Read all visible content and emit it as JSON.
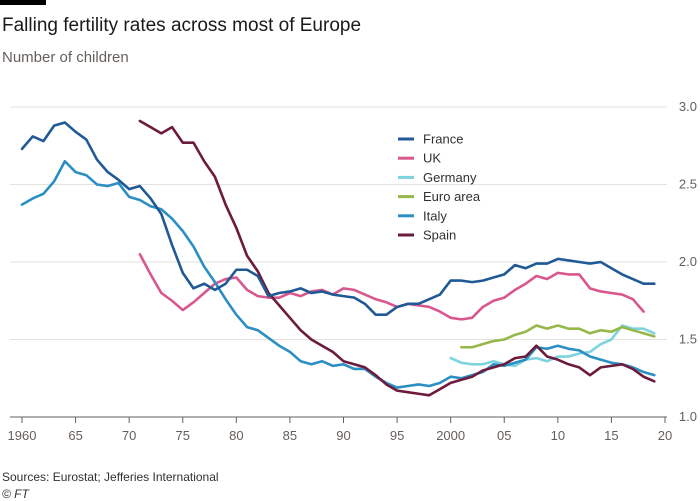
{
  "title": "Falling fertility rates across most of Europe",
  "subtitle": "Number of children",
  "source": "Sources: Eurostat; Jefferies International",
  "credit": "© FT",
  "chart_data": {
    "type": "line",
    "title": "Falling fertility rates across most of Europe",
    "subtitle": "Number of children",
    "xlabel": "",
    "ylabel": "",
    "xlim": [
      1960,
      2020
    ],
    "ylim": [
      1.0,
      3.0
    ],
    "x_ticks": [
      {
        "value": 1960,
        "label": "1960"
      },
      {
        "value": 1965,
        "label": "65"
      },
      {
        "value": 1970,
        "label": "70"
      },
      {
        "value": 1975,
        "label": "75"
      },
      {
        "value": 1980,
        "label": "80"
      },
      {
        "value": 1985,
        "label": "85"
      },
      {
        "value": 1990,
        "label": "90"
      },
      {
        "value": 1995,
        "label": "95"
      },
      {
        "value": 2000,
        "label": "2000"
      },
      {
        "value": 2005,
        "label": "05"
      },
      {
        "value": 2010,
        "label": "10"
      },
      {
        "value": 2015,
        "label": "15"
      },
      {
        "value": 2020,
        "label": "20"
      }
    ],
    "y_ticks": [
      {
        "value": 1.0,
        "label": "1.0"
      },
      {
        "value": 1.5,
        "label": "1.5"
      },
      {
        "value": 2.0,
        "label": "2.0"
      },
      {
        "value": 2.5,
        "label": "2.5"
      },
      {
        "value": 3.0,
        "label": "3.0"
      }
    ],
    "grid": true,
    "legend_position": "center-right",
    "series": [
      {
        "name": "France",
        "color": "#1f5a96",
        "points": [
          [
            1960,
            2.73
          ],
          [
            1961,
            2.81
          ],
          [
            1962,
            2.78
          ],
          [
            1963,
            2.88
          ],
          [
            1964,
            2.9
          ],
          [
            1965,
            2.84
          ],
          [
            1966,
            2.79
          ],
          [
            1967,
            2.66
          ],
          [
            1968,
            2.58
          ],
          [
            1969,
            2.53
          ],
          [
            1970,
            2.47
          ],
          [
            1971,
            2.49
          ],
          [
            1972,
            2.41
          ],
          [
            1973,
            2.31
          ],
          [
            1974,
            2.11
          ],
          [
            1975,
            1.93
          ],
          [
            1976,
            1.83
          ],
          [
            1977,
            1.86
          ],
          [
            1978,
            1.82
          ],
          [
            1979,
            1.86
          ],
          [
            1980,
            1.95
          ],
          [
            1981,
            1.95
          ],
          [
            1982,
            1.91
          ],
          [
            1983,
            1.78
          ],
          [
            1984,
            1.8
          ],
          [
            1985,
            1.81
          ],
          [
            1986,
            1.83
          ],
          [
            1987,
            1.8
          ],
          [
            1988,
            1.81
          ],
          [
            1989,
            1.79
          ],
          [
            1990,
            1.78
          ],
          [
            1991,
            1.77
          ],
          [
            1992,
            1.73
          ],
          [
            1993,
            1.66
          ],
          [
            1994,
            1.66
          ],
          [
            1995,
            1.71
          ],
          [
            1996,
            1.73
          ],
          [
            1997,
            1.73
          ],
          [
            1998,
            1.76
          ],
          [
            1999,
            1.79
          ],
          [
            2000,
            1.88
          ],
          [
            2001,
            1.88
          ],
          [
            2002,
            1.87
          ],
          [
            2003,
            1.88
          ],
          [
            2004,
            1.9
          ],
          [
            2005,
            1.92
          ],
          [
            2006,
            1.98
          ],
          [
            2007,
            1.96
          ],
          [
            2008,
            1.99
          ],
          [
            2009,
            1.99
          ],
          [
            2010,
            2.02
          ],
          [
            2011,
            2.01
          ],
          [
            2012,
            2.0
          ],
          [
            2013,
            1.99
          ],
          [
            2014,
            2.0
          ],
          [
            2015,
            1.96
          ],
          [
            2016,
            1.92
          ],
          [
            2017,
            1.89
          ],
          [
            2018,
            1.86
          ],
          [
            2019,
            1.86
          ]
        ]
      },
      {
        "name": "UK",
        "color": "#d9578f",
        "points": [
          [
            1971,
            2.05
          ],
          [
            1972,
            1.92
          ],
          [
            1973,
            1.8
          ],
          [
            1974,
            1.75
          ],
          [
            1975,
            1.69
          ],
          [
            1976,
            1.74
          ],
          [
            1977,
            1.8
          ],
          [
            1978,
            1.86
          ],
          [
            1979,
            1.89
          ],
          [
            1980,
            1.9
          ],
          [
            1981,
            1.82
          ],
          [
            1982,
            1.78
          ],
          [
            1983,
            1.77
          ],
          [
            1984,
            1.77
          ],
          [
            1985,
            1.8
          ],
          [
            1986,
            1.78
          ],
          [
            1987,
            1.81
          ],
          [
            1988,
            1.82
          ],
          [
            1989,
            1.79
          ],
          [
            1990,
            1.83
          ],
          [
            1991,
            1.82
          ],
          [
            1992,
            1.79
          ],
          [
            1993,
            1.76
          ],
          [
            1994,
            1.74
          ],
          [
            1995,
            1.71
          ],
          [
            1996,
            1.73
          ],
          [
            1997,
            1.72
          ],
          [
            1998,
            1.71
          ],
          [
            1999,
            1.68
          ],
          [
            2000,
            1.64
          ],
          [
            2001,
            1.63
          ],
          [
            2002,
            1.64
          ],
          [
            2003,
            1.71
          ],
          [
            2004,
            1.75
          ],
          [
            2005,
            1.77
          ],
          [
            2006,
            1.82
          ],
          [
            2007,
            1.86
          ],
          [
            2008,
            1.91
          ],
          [
            2009,
            1.89
          ],
          [
            2010,
            1.93
          ],
          [
            2011,
            1.92
          ],
          [
            2012,
            1.92
          ],
          [
            2013,
            1.83
          ],
          [
            2014,
            1.81
          ],
          [
            2015,
            1.8
          ],
          [
            2016,
            1.79
          ],
          [
            2017,
            1.76
          ],
          [
            2018,
            1.68
          ]
        ]
      },
      {
        "name": "Germany",
        "color": "#7dd3de",
        "points": [
          [
            2000,
            1.38
          ],
          [
            2001,
            1.35
          ],
          [
            2002,
            1.34
          ],
          [
            2003,
            1.34
          ],
          [
            2004,
            1.36
          ],
          [
            2005,
            1.34
          ],
          [
            2006,
            1.33
          ],
          [
            2007,
            1.37
          ],
          [
            2008,
            1.38
          ],
          [
            2009,
            1.36
          ],
          [
            2010,
            1.39
          ],
          [
            2011,
            1.39
          ],
          [
            2012,
            1.41
          ],
          [
            2013,
            1.42
          ],
          [
            2014,
            1.47
          ],
          [
            2015,
            1.5
          ],
          [
            2016,
            1.59
          ],
          [
            2017,
            1.57
          ],
          [
            2018,
            1.57
          ],
          [
            2019,
            1.54
          ]
        ]
      },
      {
        "name": "Euro area",
        "color": "#96b84a",
        "points": [
          [
            2001,
            1.45
          ],
          [
            2002,
            1.45
          ],
          [
            2003,
            1.47
          ],
          [
            2004,
            1.49
          ],
          [
            2005,
            1.5
          ],
          [
            2006,
            1.53
          ],
          [
            2007,
            1.55
          ],
          [
            2008,
            1.59
          ],
          [
            2009,
            1.57
          ],
          [
            2010,
            1.59
          ],
          [
            2011,
            1.57
          ],
          [
            2012,
            1.57
          ],
          [
            2013,
            1.54
          ],
          [
            2014,
            1.56
          ],
          [
            2015,
            1.55
          ],
          [
            2016,
            1.58
          ],
          [
            2017,
            1.56
          ],
          [
            2018,
            1.54
          ],
          [
            2019,
            1.52
          ]
        ]
      },
      {
        "name": "Italy",
        "color": "#2b8fc4",
        "points": [
          [
            1960,
            2.37
          ],
          [
            1961,
            2.41
          ],
          [
            1962,
            2.44
          ],
          [
            1963,
            2.52
          ],
          [
            1964,
            2.65
          ],
          [
            1965,
            2.58
          ],
          [
            1966,
            2.56
          ],
          [
            1967,
            2.5
          ],
          [
            1968,
            2.49
          ],
          [
            1969,
            2.51
          ],
          [
            1970,
            2.42
          ],
          [
            1971,
            2.4
          ],
          [
            1972,
            2.36
          ],
          [
            1973,
            2.34
          ],
          [
            1974,
            2.28
          ],
          [
            1975,
            2.2
          ],
          [
            1976,
            2.1
          ],
          [
            1977,
            1.97
          ],
          [
            1978,
            1.87
          ],
          [
            1979,
            1.76
          ],
          [
            1980,
            1.66
          ],
          [
            1981,
            1.58
          ],
          [
            1982,
            1.56
          ],
          [
            1983,
            1.51
          ],
          [
            1984,
            1.46
          ],
          [
            1985,
            1.42
          ],
          [
            1986,
            1.36
          ],
          [
            1987,
            1.34
          ],
          [
            1988,
            1.36
          ],
          [
            1989,
            1.33
          ],
          [
            1990,
            1.34
          ],
          [
            1991,
            1.31
          ],
          [
            1992,
            1.31
          ],
          [
            1993,
            1.26
          ],
          [
            1994,
            1.22
          ],
          [
            1995,
            1.19
          ],
          [
            1996,
            1.2
          ],
          [
            1997,
            1.21
          ],
          [
            1998,
            1.2
          ],
          [
            1999,
            1.22
          ],
          [
            2000,
            1.26
          ],
          [
            2001,
            1.25
          ],
          [
            2002,
            1.27
          ],
          [
            2003,
            1.29
          ],
          [
            2004,
            1.34
          ],
          [
            2005,
            1.33
          ],
          [
            2006,
            1.35
          ],
          [
            2007,
            1.37
          ],
          [
            2008,
            1.45
          ],
          [
            2009,
            1.44
          ],
          [
            2010,
            1.46
          ],
          [
            2011,
            1.44
          ],
          [
            2012,
            1.43
          ],
          [
            2013,
            1.39
          ],
          [
            2014,
            1.37
          ],
          [
            2015,
            1.35
          ],
          [
            2016,
            1.34
          ],
          [
            2017,
            1.32
          ],
          [
            2018,
            1.29
          ],
          [
            2019,
            1.27
          ]
        ]
      },
      {
        "name": "Spain",
        "color": "#6d1b3c",
        "points": [
          [
            1971,
            2.91
          ],
          [
            1972,
            2.87
          ],
          [
            1973,
            2.83
          ],
          [
            1974,
            2.87
          ],
          [
            1975,
            2.77
          ],
          [
            1976,
            2.77
          ],
          [
            1977,
            2.65
          ],
          [
            1978,
            2.55
          ],
          [
            1979,
            2.37
          ],
          [
            1980,
            2.22
          ],
          [
            1981,
            2.04
          ],
          [
            1982,
            1.94
          ],
          [
            1983,
            1.8
          ],
          [
            1984,
            1.72
          ],
          [
            1985,
            1.64
          ],
          [
            1986,
            1.56
          ],
          [
            1987,
            1.5
          ],
          [
            1988,
            1.46
          ],
          [
            1989,
            1.42
          ],
          [
            1990,
            1.36
          ],
          [
            1991,
            1.34
          ],
          [
            1992,
            1.32
          ],
          [
            1993,
            1.27
          ],
          [
            1994,
            1.21
          ],
          [
            1995,
            1.17
          ],
          [
            1996,
            1.16
          ],
          [
            1997,
            1.15
          ],
          [
            1998,
            1.14
          ],
          [
            1999,
            1.18
          ],
          [
            2000,
            1.22
          ],
          [
            2001,
            1.24
          ],
          [
            2002,
            1.26
          ],
          [
            2003,
            1.3
          ],
          [
            2004,
            1.32
          ],
          [
            2005,
            1.34
          ],
          [
            2006,
            1.38
          ],
          [
            2007,
            1.39
          ],
          [
            2008,
            1.46
          ],
          [
            2009,
            1.39
          ],
          [
            2010,
            1.37
          ],
          [
            2011,
            1.34
          ],
          [
            2012,
            1.32
          ],
          [
            2013,
            1.27
          ],
          [
            2014,
            1.32
          ],
          [
            2015,
            1.33
          ],
          [
            2016,
            1.34
          ],
          [
            2017,
            1.31
          ],
          [
            2018,
            1.26
          ],
          [
            2019,
            1.23
          ]
        ]
      }
    ]
  }
}
